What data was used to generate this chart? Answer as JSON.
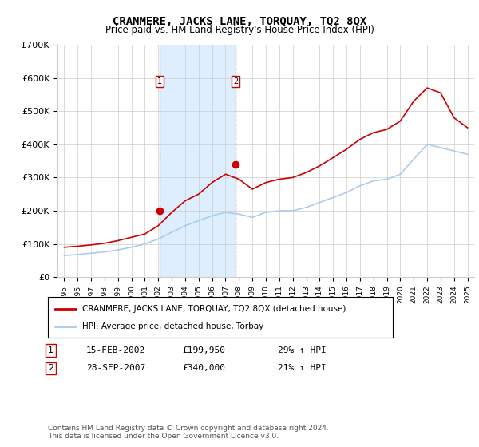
{
  "title": "CRANMERE, JACKS LANE, TORQUAY, TQ2 8QX",
  "subtitle": "Price paid vs. HM Land Registry's House Price Index (HPI)",
  "years_hpi": [
    1995,
    1996,
    1997,
    1998,
    1999,
    2000,
    2001,
    2002,
    2003,
    2004,
    2005,
    2006,
    2007,
    2008,
    2009,
    2010,
    2011,
    2012,
    2013,
    2014,
    2015,
    2016,
    2017,
    2018,
    2019,
    2020,
    2021,
    2022,
    2023,
    2024,
    2025
  ],
  "hpi_values": [
    65000,
    68000,
    72000,
    76000,
    82000,
    90000,
    100000,
    115000,
    135000,
    155000,
    170000,
    185000,
    195000,
    190000,
    180000,
    195000,
    200000,
    200000,
    210000,
    225000,
    240000,
    255000,
    275000,
    290000,
    295000,
    310000,
    355000,
    400000,
    390000,
    380000,
    370000
  ],
  "property_years": [
    1995,
    1996,
    1997,
    1998,
    1999,
    2000,
    2001,
    2002,
    2003,
    2004,
    2005,
    2006,
    2007,
    2008,
    2009,
    2010,
    2011,
    2012,
    2013,
    2014,
    2015,
    2016,
    2017,
    2018,
    2019,
    2020,
    2021,
    2022,
    2023,
    2024,
    2025
  ],
  "property_values": [
    90000,
    93000,
    97000,
    102000,
    110000,
    120000,
    130000,
    155000,
    195000,
    230000,
    250000,
    285000,
    310000,
    295000,
    265000,
    285000,
    295000,
    300000,
    315000,
    335000,
    360000,
    385000,
    415000,
    435000,
    445000,
    470000,
    530000,
    570000,
    555000,
    480000,
    450000
  ],
  "transaction1_x": 2002.12,
  "transaction1_y": 199950,
  "transaction2_x": 2007.75,
  "transaction2_y": 340000,
  "shade_x1": 2002.12,
  "shade_x2": 2007.75,
  "vline1_x": 2002.12,
  "vline2_x": 2007.75,
  "ylim": [
    0,
    700000
  ],
  "yticks": [
    0,
    100000,
    200000,
    300000,
    400000,
    500000,
    600000,
    700000
  ],
  "ytick_labels": [
    "£0",
    "£100K",
    "£200K",
    "£300K",
    "£400K",
    "£500K",
    "£600K",
    "£700K"
  ],
  "xlim_min": 1994.5,
  "xlim_max": 2025.5,
  "red_color": "#cc0000",
  "blue_color": "#aaccee",
  "shade_color": "#ddeeff",
  "grid_color": "#cccccc",
  "background_color": "#ffffff",
  "legend_line1": "CRANMERE, JACKS LANE, TORQUAY, TQ2 8QX (detached house)",
  "legend_line2": "HPI: Average price, detached house, Torbay",
  "table_row1_num": "1",
  "table_row1_date": "15-FEB-2002",
  "table_row1_price": "£199,950",
  "table_row1_hpi": "29% ↑ HPI",
  "table_row2_num": "2",
  "table_row2_date": "28-SEP-2007",
  "table_row2_price": "£340,000",
  "table_row2_hpi": "21% ↑ HPI",
  "footer": "Contains HM Land Registry data © Crown copyright and database right 2024.\nThis data is licensed under the Open Government Licence v3.0."
}
